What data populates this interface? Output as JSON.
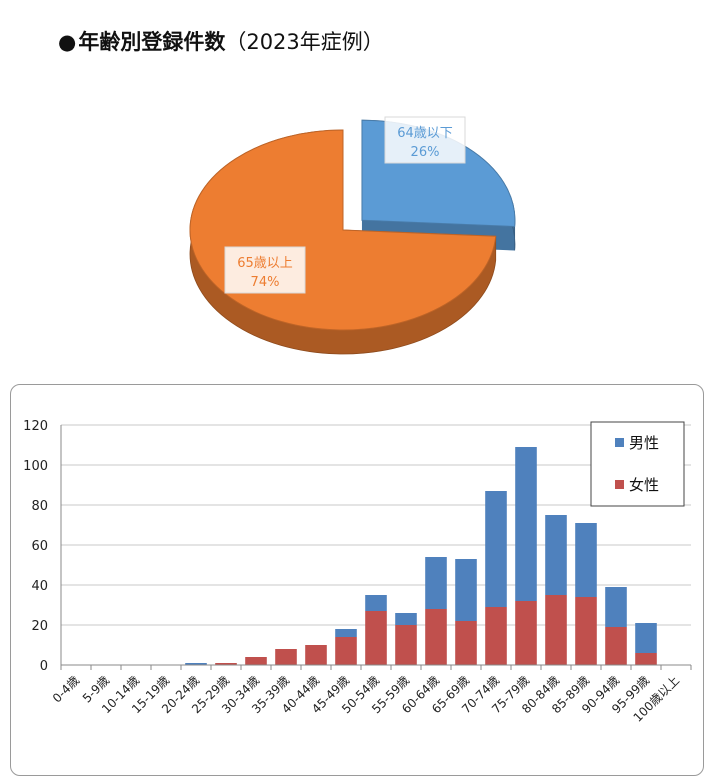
{
  "title": {
    "bullet": "●",
    "main": "年齢別登録件数",
    "sub": "（2023年症例）"
  },
  "chart_data": [
    {
      "type": "pie",
      "slices": [
        {
          "label": "64歳以下",
          "percent_label": "26%",
          "value": 26,
          "color": "#5b9bd5"
        },
        {
          "label": "65歳以上",
          "percent_label": "74%",
          "value": 74,
          "color": "#ed7d31"
        }
      ]
    },
    {
      "type": "bar",
      "stacked": true,
      "categories": [
        "0-4歳",
        "5-9歳",
        "10-14歳",
        "15-19歳",
        "20-24歳",
        "25-29歳",
        "30-34歳",
        "35-39歳",
        "40-44歳",
        "45-49歳",
        "50-54歳",
        "55-59歳",
        "60-64歳",
        "65-69歳",
        "70-74歳",
        "75-79歳",
        "80-84歳",
        "85-89歳",
        "90-94歳",
        "95-99歳",
        "100歳以上"
      ],
      "series": [
        {
          "name": "女性",
          "color": "#c0504d",
          "values": [
            0,
            0,
            0,
            0,
            0,
            1,
            4,
            8,
            10,
            14,
            27,
            20,
            28,
            22,
            29,
            32,
            35,
            34,
            19,
            6,
            0
          ]
        },
        {
          "name": "男性",
          "color": "#4f81bd",
          "values": [
            0,
            0,
            0,
            0,
            1,
            0,
            0,
            0,
            0,
            4,
            8,
            6,
            26,
            31,
            58,
            77,
            40,
            37,
            20,
            15,
            0
          ]
        }
      ],
      "legend_order": [
        "男性",
        "女性"
      ],
      "legend_position": "top-right",
      "yticks": [
        0,
        20,
        40,
        60,
        80,
        100,
        120
      ],
      "ylim": [
        0,
        120
      ],
      "grid": true
    }
  ]
}
